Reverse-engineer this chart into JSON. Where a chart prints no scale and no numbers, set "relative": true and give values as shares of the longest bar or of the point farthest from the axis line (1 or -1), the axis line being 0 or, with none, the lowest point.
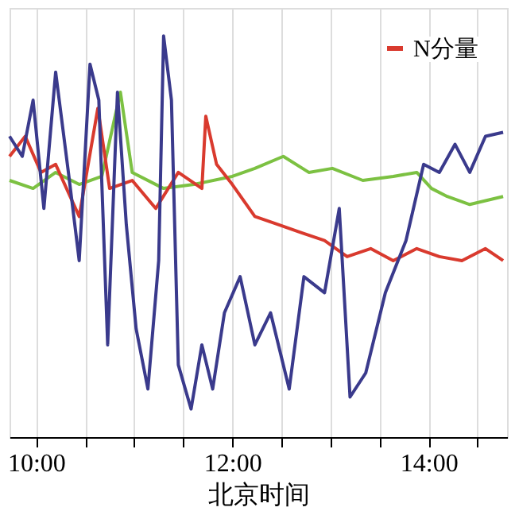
{
  "chart_data": {
    "type": "line",
    "xlabel": "北京时间",
    "relative": true,
    "grid": "x",
    "legend": "top right",
    "marker": "none",
    "line_style": "solid",
    "xlim": [
      9.73,
      14.8
    ],
    "xticks": [
      {
        "value": 10,
        "label": "10:00"
      },
      {
        "value": 10.5,
        "label": null
      },
      {
        "value": 11,
        "label": null
      },
      {
        "value": 11.5,
        "label": null
      },
      {
        "value": 12,
        "label": "12:00"
      },
      {
        "value": 12.5,
        "label": null
      },
      {
        "value": 13,
        "label": null
      },
      {
        "value": 13.5,
        "label": null
      },
      {
        "value": 14,
        "label": "14:00"
      },
      {
        "value": 14.5,
        "label": null
      }
    ],
    "series": [
      {
        "color": "#7cc142",
        "x": [
          9.73,
          9.97,
          10.2,
          10.44,
          10.67,
          10.86,
          10.98,
          11.3,
          11.61,
          12.0,
          12.23,
          12.52,
          12.78,
          13.02,
          13.33,
          13.64,
          13.88,
          14.03,
          14.19,
          14.42,
          14.76
        ],
        "values": [
          0.64,
          0.62,
          0.66,
          0.63,
          0.65,
          0.86,
          0.66,
          0.62,
          0.63,
          0.65,
          0.67,
          0.7,
          0.66,
          0.67,
          0.64,
          0.65,
          0.66,
          0.62,
          0.6,
          0.58,
          0.6
        ]
      },
      {
        "name": "N分量",
        "color": "#d93a2e",
        "x": [
          9.73,
          9.89,
          10.05,
          10.2,
          10.44,
          10.63,
          10.75,
          10.98,
          11.22,
          11.45,
          11.69,
          11.73,
          11.84,
          12.0,
          12.23,
          12.47,
          12.7,
          12.94,
          13.17,
          13.41,
          13.64,
          13.88,
          14.11,
          14.34,
          14.58,
          14.76
        ],
        "values": [
          0.7,
          0.75,
          0.66,
          0.68,
          0.55,
          0.82,
          0.62,
          0.64,
          0.57,
          0.66,
          0.62,
          0.8,
          0.68,
          0.63,
          0.55,
          0.53,
          0.51,
          0.49,
          0.45,
          0.47,
          0.44,
          0.47,
          0.45,
          0.44,
          0.47,
          0.44
        ]
      },
      {
        "color": "#3a3a8c",
        "x": [
          9.73,
          9.86,
          9.97,
          10.08,
          10.2,
          10.33,
          10.44,
          10.55,
          10.64,
          10.73,
          10.83,
          10.92,
          11.02,
          11.14,
          11.25,
          11.3,
          11.38,
          11.45,
          11.58,
          11.69,
          11.8,
          11.92,
          12.08,
          12.23,
          12.39,
          12.58,
          12.73,
          12.94,
          13.09,
          13.2,
          13.36,
          13.56,
          13.77,
          13.95,
          14.11,
          14.27,
          14.42,
          14.58,
          14.76
        ],
        "values": [
          0.75,
          0.7,
          0.84,
          0.57,
          0.91,
          0.66,
          0.44,
          0.93,
          0.84,
          0.23,
          0.86,
          0.53,
          0.27,
          0.12,
          0.44,
          1.0,
          0.84,
          0.18,
          0.07,
          0.23,
          0.12,
          0.31,
          0.4,
          0.23,
          0.31,
          0.12,
          0.4,
          0.36,
          0.57,
          0.1,
          0.16,
          0.36,
          0.49,
          0.68,
          0.66,
          0.73,
          0.66,
          0.75,
          0.76
        ]
      }
    ]
  }
}
